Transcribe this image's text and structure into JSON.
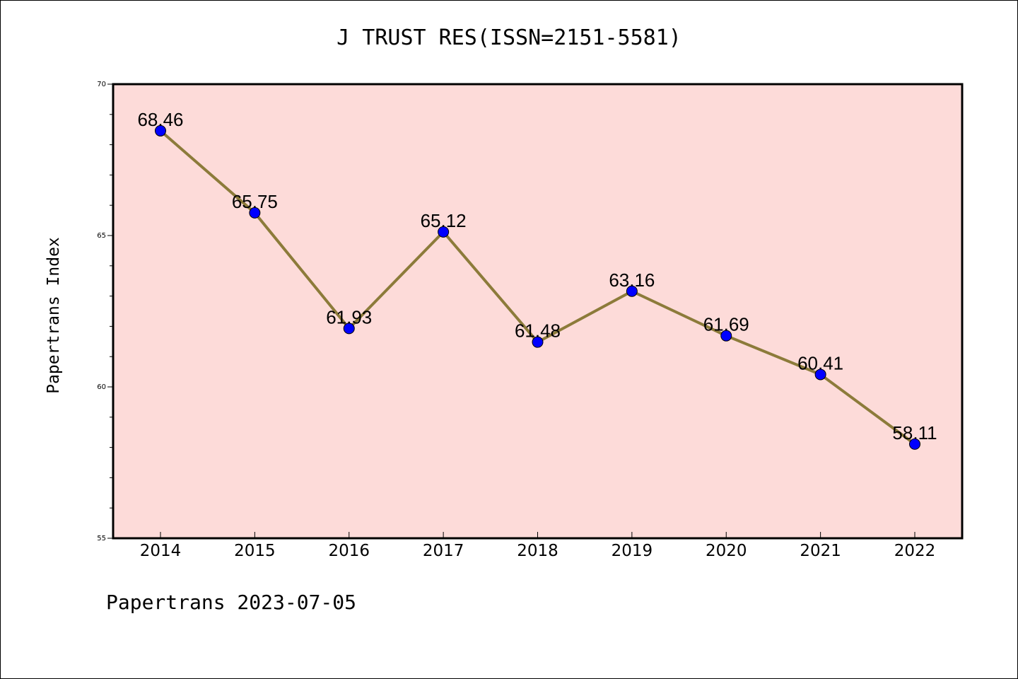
{
  "title": "J TRUST RES(ISSN=2151-5581)",
  "footer": "Papertrans 2023-07-05",
  "chart_data": {
    "type": "line",
    "title": "J TRUST RES(ISSN=2151-5581)",
    "xlabel": "",
    "ylabel": "Papertrans Index",
    "categories": [
      "2014",
      "2015",
      "2016",
      "2017",
      "2018",
      "2019",
      "2020",
      "2021",
      "2022"
    ],
    "series": [
      {
        "values": [
          68.46,
          65.75,
          61.93,
          65.12,
          61.48,
          63.16,
          61.69,
          60.41,
          58.11
        ],
        "labels": [
          "68.46",
          "65.75",
          "61.93",
          "65.12",
          "61.48",
          "63.16",
          "61.69",
          "60.41",
          "58.11"
        ]
      }
    ],
    "ylim": [
      55,
      70
    ],
    "yticks": [
      "55",
      "60",
      "65",
      "70"
    ],
    "grid": false,
    "legend": "none",
    "colors": {
      "plot_background": "#fddbd9",
      "line": "#8c7b3a",
      "marker": "#0000ff"
    }
  }
}
